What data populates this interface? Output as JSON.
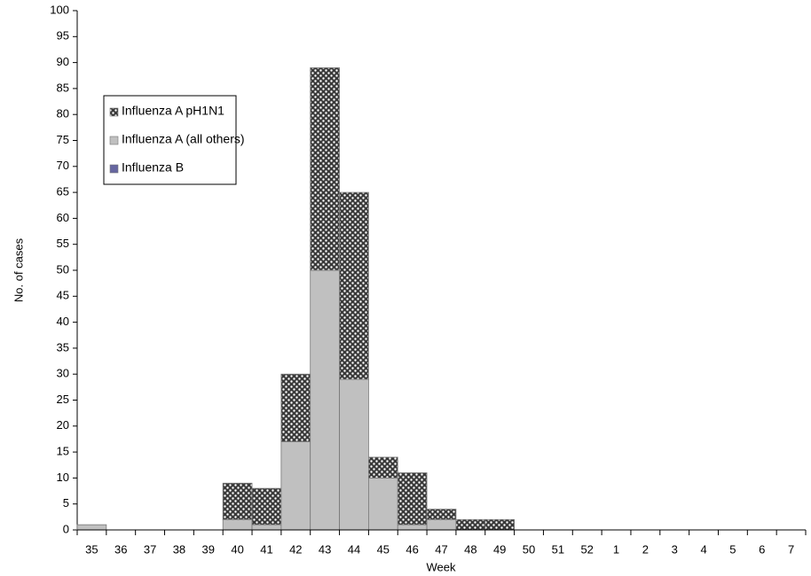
{
  "chart_data": {
    "type": "stacked-bar",
    "x_label": "Week",
    "y_label": "No. of cases",
    "categories": [
      "35",
      "36",
      "37",
      "38",
      "39",
      "40",
      "41",
      "42",
      "43",
      "44",
      "45",
      "46",
      "47",
      "48",
      "49",
      "50",
      "51",
      "52",
      "1",
      "2",
      "3",
      "4",
      "5",
      "6",
      "7"
    ],
    "series": [
      {
        "name": "Influenza A pH1N1",
        "color": "#555555",
        "pattern": "crosshatch",
        "values": [
          0,
          0,
          0,
          0,
          0,
          7,
          7,
          13,
          39,
          36,
          4,
          10,
          2,
          2,
          2,
          0,
          0,
          0,
          0,
          0,
          0,
          0,
          0,
          0,
          0
        ]
      },
      {
        "name": "Influenza A (all others)",
        "color": "#c0c0c0",
        "values": [
          1,
          0,
          0,
          0,
          0,
          2,
          1,
          17,
          50,
          29,
          10,
          1,
          2,
          0,
          0,
          0,
          0,
          0,
          0,
          0,
          0,
          0,
          0,
          0,
          0
        ]
      },
      {
        "name": "Influenza B",
        "color": "#6666a0",
        "values": [
          0,
          0,
          0,
          0,
          0,
          0,
          0,
          0,
          0,
          0,
          0,
          0,
          0,
          0,
          0,
          0,
          0,
          0,
          0,
          0,
          0,
          0,
          0,
          0,
          0
        ]
      }
    ],
    "stack_order": [
      1,
      0,
      2
    ],
    "ylim": [
      0,
      100
    ],
    "yticks": [
      0,
      5,
      10,
      15,
      20,
      25,
      30,
      35,
      40,
      45,
      50,
      55,
      60,
      65,
      70,
      75,
      80,
      85,
      90,
      95,
      100
    ],
    "legend": "upper left"
  }
}
